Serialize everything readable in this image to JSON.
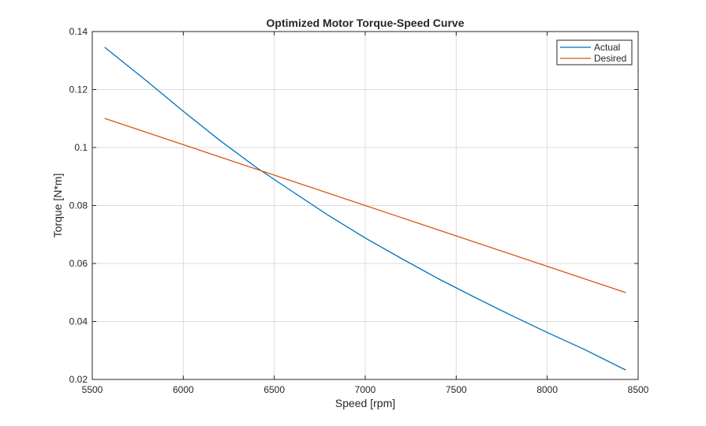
{
  "chart_data": {
    "type": "line",
    "title": "Optimized Motor Torque-Speed Curve",
    "xlabel": "Speed [rpm]",
    "ylabel": "Torque [N*m]",
    "xlim": [
      5500,
      8500
    ],
    "ylim": [
      0.02,
      0.14
    ],
    "xticks": [
      5500,
      6000,
      6500,
      7000,
      7500,
      8000,
      8500
    ],
    "yticks": [
      0.02,
      0.04,
      0.06,
      0.08,
      0.1,
      0.12,
      0.14
    ],
    "xtick_labels": [
      "5500",
      "6000",
      "6500",
      "7000",
      "7500",
      "8000",
      "8500"
    ],
    "ytick_labels": [
      "0.02",
      "0.04",
      "0.06",
      "0.08",
      "0.1",
      "0.12",
      "0.14"
    ],
    "grid": true,
    "legend_position": "top-right",
    "series": [
      {
        "name": "Actual",
        "color": "#0072BD",
        "x": [
          5570,
          5800,
          6000,
          6200,
          6400,
          6600,
          6800,
          7000,
          7200,
          7400,
          7600,
          7800,
          8000,
          8200,
          8430
        ],
        "y": [
          0.1345,
          0.1229,
          0.1125,
          0.1025,
          0.0932,
          0.0848,
          0.0765,
          0.0688,
          0.0617,
          0.0548,
          0.0484,
          0.0422,
          0.0362,
          0.0305,
          0.0233
        ]
      },
      {
        "name": "Desired",
        "color": "#D95319",
        "x": [
          5570,
          8430
        ],
        "y": [
          0.11,
          0.05
        ]
      }
    ]
  }
}
